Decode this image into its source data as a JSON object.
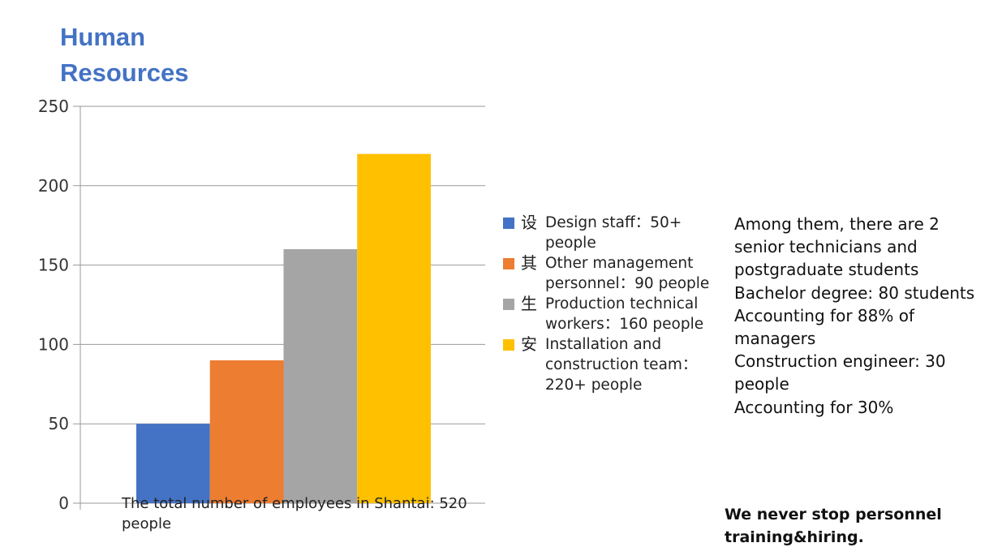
{
  "title_lines": [
    "Human",
    "Resources"
  ],
  "chart_data": {
    "type": "bar",
    "categories": [
      "Design staff",
      "Other management personnel",
      "Production technical workers",
      "Installation and construction team"
    ],
    "values": [
      50,
      90,
      160,
      220
    ],
    "colors": [
      "#4472c4",
      "#ed7d31",
      "#a5a5a5",
      "#ffc000"
    ],
    "ylim": [
      0,
      250
    ],
    "yticks": [
      "0",
      "50",
      "100",
      "150",
      "200",
      "250"
    ],
    "grid": true,
    "legend_position": "right",
    "legend": [
      {
        "glyph": "设",
        "label": "Design staff：50+ people",
        "color": "#4472c4"
      },
      {
        "glyph": "其",
        "label": "Other management personnel：90 people",
        "color": "#ed7d31"
      },
      {
        "glyph": "生",
        "label": "Production technical workers：160 people",
        "color": "#a5a5a5"
      },
      {
        "glyph": "安",
        "label": "Installation and construction team：220+ people",
        "color": "#ffc000"
      }
    ]
  },
  "total_note": "The total number of employees in Shantai: 520 people",
  "notes": [
    "Among them, there are 2 senior technicians and postgraduate students",
    "Bachelor degree: 80 students",
    "Accounting for 88% of managers",
    "Construction engineer: 30 people",
    "Accounting for 30%"
  ],
  "slogan": "We never stop personnel training&hiring."
}
